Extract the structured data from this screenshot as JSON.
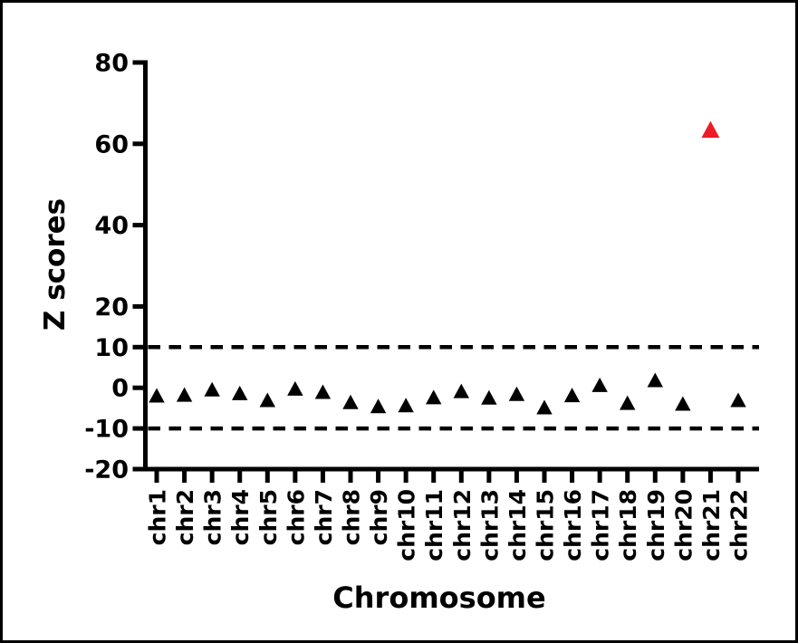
{
  "figure": {
    "background": "#FFFFFF",
    "border_color": "#000000",
    "axis_color": "#000000"
  },
  "chart_data": {
    "type": "scatter",
    "marker": "triangle-up",
    "title": "",
    "xlabel": "Chromosome",
    "ylabel": "Z scores",
    "categories": [
      "chr1",
      "chr2",
      "chr3",
      "chr4",
      "chr5",
      "chr6",
      "chr7",
      "chr8",
      "chr9",
      "chr10",
      "chr11",
      "chr12",
      "chr13",
      "chr14",
      "chr15",
      "chr16",
      "chr17",
      "chr18",
      "chr19",
      "chr20",
      "chr21",
      "chr22"
    ],
    "values": [
      -1.9,
      -1.7,
      -0.4,
      -1.3,
      -3.0,
      -0.2,
      -1.0,
      -3.5,
      -4.5,
      -4.3,
      -2.3,
      -0.8,
      -2.4,
      -1.5,
      -4.8,
      -1.8,
      0.7,
      -3.7,
      1.9,
      -3.9,
      63.5,
      -3.0
    ],
    "default_point_color": "#000000",
    "highlight": {
      "category": "chr21",
      "color": "#ED1C24"
    },
    "ylim": [
      -20,
      80
    ],
    "yticks": [
      80,
      60,
      40,
      20,
      10,
      0,
      -10,
      -20
    ],
    "ytick_labels": [
      "80",
      "60",
      "40",
      "20",
      "10",
      "0",
      "-10",
      "-20"
    ],
    "threshold_lines": [
      {
        "y": 10,
        "style": "dashed",
        "color": "#000000"
      },
      {
        "y": -10,
        "style": "dashed",
        "color": "#000000"
      }
    ],
    "grid": false,
    "legend": null
  }
}
